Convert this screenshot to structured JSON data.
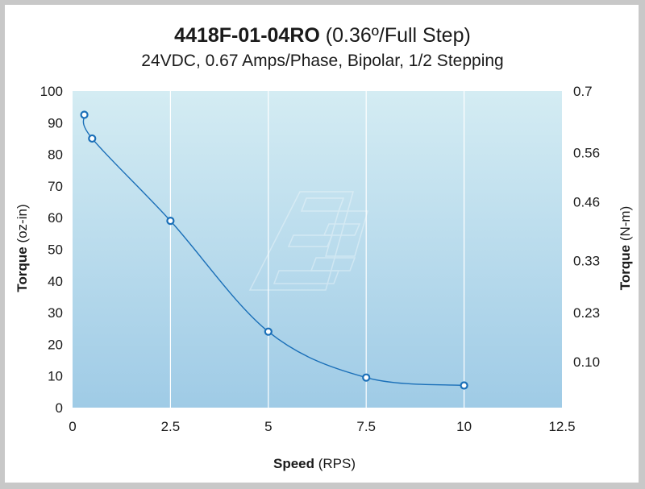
{
  "chart_data": {
    "type": "line",
    "title_bold": "4418F-01-04RO",
    "title_rest": " (0.36º/Full Step)",
    "subtitle": "24VDC, 0.67 Amps/Phase, Bipolar, 1/2 Stepping",
    "xlabel_bold": "Speed",
    "xlabel_rest": " (RPS)",
    "ylabel_bold": "Torque",
    "ylabel_rest": " (oz-in)",
    "y2label_bold": "Torque",
    "y2label_rest": " (N-m)",
    "xlim": [
      0,
      12.5
    ],
    "ylim": [
      0,
      100
    ],
    "x_ticks": [
      "0",
      "2.5",
      "5",
      "7.5",
      "10",
      "12.5"
    ],
    "x_tick_values": [
      0,
      2.5,
      5,
      7.5,
      10,
      12.5
    ],
    "y_ticks": [
      "0",
      "10",
      "20",
      "30",
      "40",
      "50",
      "60",
      "70",
      "80",
      "90",
      "100"
    ],
    "y_tick_values": [
      0,
      10,
      20,
      30,
      40,
      50,
      60,
      70,
      80,
      90,
      100
    ],
    "y2_ticks": [
      "0.7",
      "0.56",
      "0.46",
      "0.33",
      "0.23",
      "0.10"
    ],
    "y2_tick_values": [
      100,
      80.5,
      65,
      46.5,
      30,
      14.5
    ],
    "grid": "vertical",
    "series": [
      {
        "x": [
          0.3,
          0.5,
          2.5,
          5,
          7.5,
          10
        ],
        "y": [
          92.5,
          85,
          59,
          24,
          9.5,
          7
        ],
        "color": "#1a6fb8"
      }
    ]
  },
  "colors": {
    "plot_top": "#d4ecf3",
    "plot_bottom": "#9fcbe6",
    "line": "#1a6fb8",
    "marker_fill": "#ffffff",
    "frame": "#c8c8c8"
  }
}
